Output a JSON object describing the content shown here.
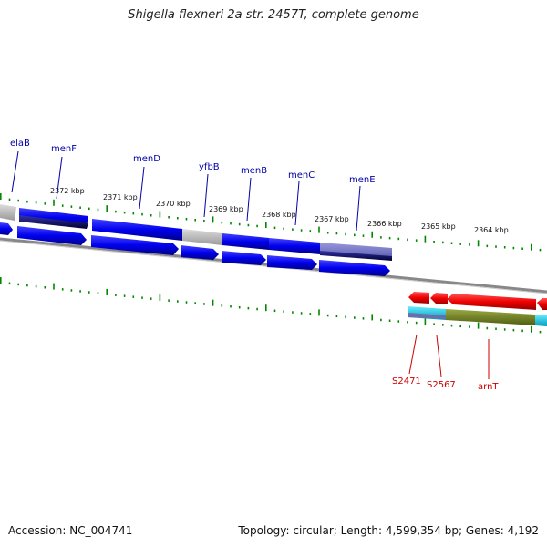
{
  "title": "Shigella flexneri 2a str. 2457T, complete genome",
  "footer": {
    "accession": "Accession: NC_004741",
    "summary": "Topology: circular; Length: 4,599,354 bp; Genes: 4,192"
  },
  "colors": {
    "forward_gene": "#0000dd",
    "reverse_gene": "#ee0000",
    "tick": "#008800",
    "label_blue": "#0000aa",
    "label_red": "#cc0000",
    "backbone": "#888888"
  },
  "kbp_labels": [
    "2372 kbp",
    "2371 kbp",
    "2370 kbp",
    "2369 kbp",
    "2368 kbp",
    "2367 kbp",
    "2366 kbp",
    "2365 kbp",
    "2364 kbp"
  ],
  "forward_labels": [
    "elaB",
    "menF",
    "menD",
    "yfbB",
    "menB",
    "menC",
    "menE"
  ],
  "reverse_labels": [
    "S2471",
    "S2567",
    "arnT"
  ]
}
